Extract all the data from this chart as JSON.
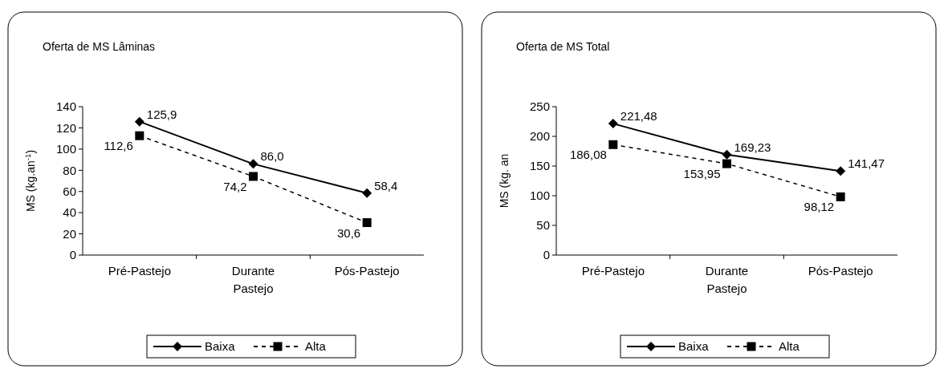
{
  "chart_data": [
    {
      "type": "line",
      "title": "Oferta de MS Lâminas",
      "ylabel": "MS (kg.an$^{-1}$)",
      "categories": [
        "Pré-Pastejo",
        "Durante Pastejo",
        "Pós-Pastejo"
      ],
      "ylim": [
        0,
        140
      ],
      "yticks": [
        0,
        20,
        40,
        60,
        80,
        100,
        120,
        140
      ],
      "grid": false,
      "legend": "bottom",
      "series": [
        {
          "name": "Baixa",
          "color": "#000000",
          "marker": "diamond",
          "line_style": "solid",
          "values": [
            125.9,
            86.0,
            58.4
          ],
          "value_labels": [
            "125,9",
            "86,0",
            "58,4"
          ]
        },
        {
          "name": "Alta",
          "color": "#000000",
          "marker": "square",
          "line_style": "dashed",
          "values": [
            112.6,
            74.2,
            30.6
          ],
          "value_labels": [
            "112,6",
            "74,2",
            "30,6"
          ]
        }
      ]
    },
    {
      "type": "line",
      "title": "Oferta de MS Total",
      "ylabel": "MS (kg. an",
      "categories": [
        "Pré-Pastejo",
        "Durante Pastejo",
        "Pós-Pastejo"
      ],
      "ylim": [
        0,
        250
      ],
      "yticks": [
        0,
        50,
        100,
        150,
        200,
        250
      ],
      "grid": false,
      "legend": "bottom",
      "series": [
        {
          "name": "Baixa",
          "color": "#000000",
          "marker": "diamond",
          "line_style": "solid",
          "values": [
            221.48,
            169.23,
            141.47
          ],
          "value_labels": [
            "221,48",
            "169,23",
            "141,47"
          ]
        },
        {
          "name": "Alta",
          "color": "#000000",
          "marker": "square",
          "line_style": "dashed",
          "values": [
            186.08,
            153.95,
            98.12
          ],
          "value_labels": [
            "186,08",
            "153,95",
            "98,12"
          ]
        }
      ]
    }
  ]
}
